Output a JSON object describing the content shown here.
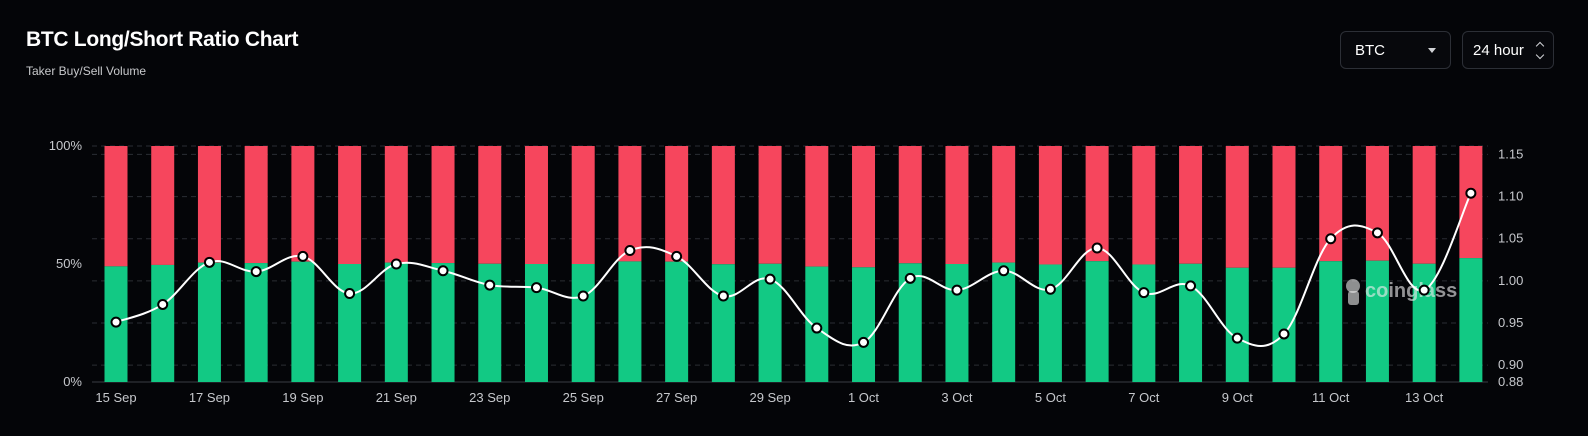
{
  "header": {
    "title": "BTC Long/Short Ratio Chart",
    "subtitle": "Taker Buy/Sell Volume"
  },
  "controls": {
    "coin_select": {
      "value": "BTC",
      "icon": "caret-down-icon"
    },
    "range_select": {
      "value": "24 hour",
      "icon": "chevron-up-down-icon"
    }
  },
  "watermark": {
    "text": "coinglass",
    "icon": "coinglass-logo-icon"
  },
  "colors": {
    "long": "#12c984",
    "short": "#f6465d",
    "ratio_line": "#ffffff",
    "background": "#040508"
  },
  "chart_data": {
    "type": "bar",
    "stacked_percent": true,
    "x_tick_labels": [
      "15 Sep",
      "17 Sep",
      "19 Sep",
      "21 Sep",
      "23 Sep",
      "25 Sep",
      "27 Sep",
      "29 Sep",
      "1 Oct",
      "3 Oct",
      "5 Oct",
      "7 Oct",
      "9 Oct",
      "11 Oct",
      "13 Oct"
    ],
    "categories": [
      "15 Sep",
      "16 Sep",
      "17 Sep",
      "18 Sep",
      "19 Sep",
      "20 Sep",
      "21 Sep",
      "22 Sep",
      "23 Sep",
      "24 Sep",
      "25 Sep",
      "26 Sep",
      "27 Sep",
      "28 Sep",
      "29 Sep",
      "30 Sep",
      "1 Oct",
      "2 Oct",
      "3 Oct",
      "4 Oct",
      "5 Oct",
      "6 Oct",
      "7 Oct",
      "8 Oct",
      "9 Oct",
      "10 Oct",
      "11 Oct",
      "12 Oct",
      "13 Oct",
      "14 Oct"
    ],
    "series": [
      {
        "axis": "left",
        "values": [
          49.0,
          49.6,
          50.6,
          50.4,
          51.0,
          50.0,
          50.6,
          50.4,
          50.1,
          50.0,
          50.0,
          51.1,
          51.0,
          49.9,
          50.1,
          48.9,
          48.6,
          50.3,
          50.0,
          50.6,
          49.8,
          51.2,
          49.8,
          50.1,
          48.4,
          48.4,
          51.2,
          51.4,
          50.1,
          52.5
        ]
      },
      {
        "axis": "left",
        "values": [
          51.0,
          50.4,
          49.4,
          49.6,
          49.0,
          50.0,
          49.4,
          49.6,
          49.9,
          50.0,
          50.0,
          48.9,
          49.0,
          50.1,
          49.9,
          51.1,
          51.4,
          49.7,
          50.0,
          49.4,
          50.2,
          48.8,
          50.2,
          49.9,
          51.6,
          51.6,
          48.8,
          48.6,
          49.9,
          47.5
        ]
      },
      {
        "axis": "right",
        "type": "line",
        "values": [
          0.951,
          0.972,
          1.022,
          1.011,
          1.029,
          0.985,
          1.02,
          1.012,
          0.995,
          0.992,
          0.982,
          1.036,
          1.029,
          0.982,
          1.002,
          0.944,
          0.927,
          1.003,
          0.989,
          1.012,
          0.99,
          1.039,
          0.986,
          0.994,
          0.932,
          0.937,
          1.05,
          1.057,
          0.989,
          1.104
        ]
      }
    ],
    "y_left": {
      "ticks": [
        "0%",
        "50%",
        "100%"
      ],
      "range": [
        0,
        100
      ]
    },
    "y_right": {
      "ticks": [
        "0.88",
        "0.90",
        "0.95",
        "1.00",
        "1.05",
        "1.10",
        "1.15"
      ],
      "range": [
        0.88,
        1.16
      ]
    },
    "grid": "horizontal-dashed",
    "legend": "none"
  }
}
